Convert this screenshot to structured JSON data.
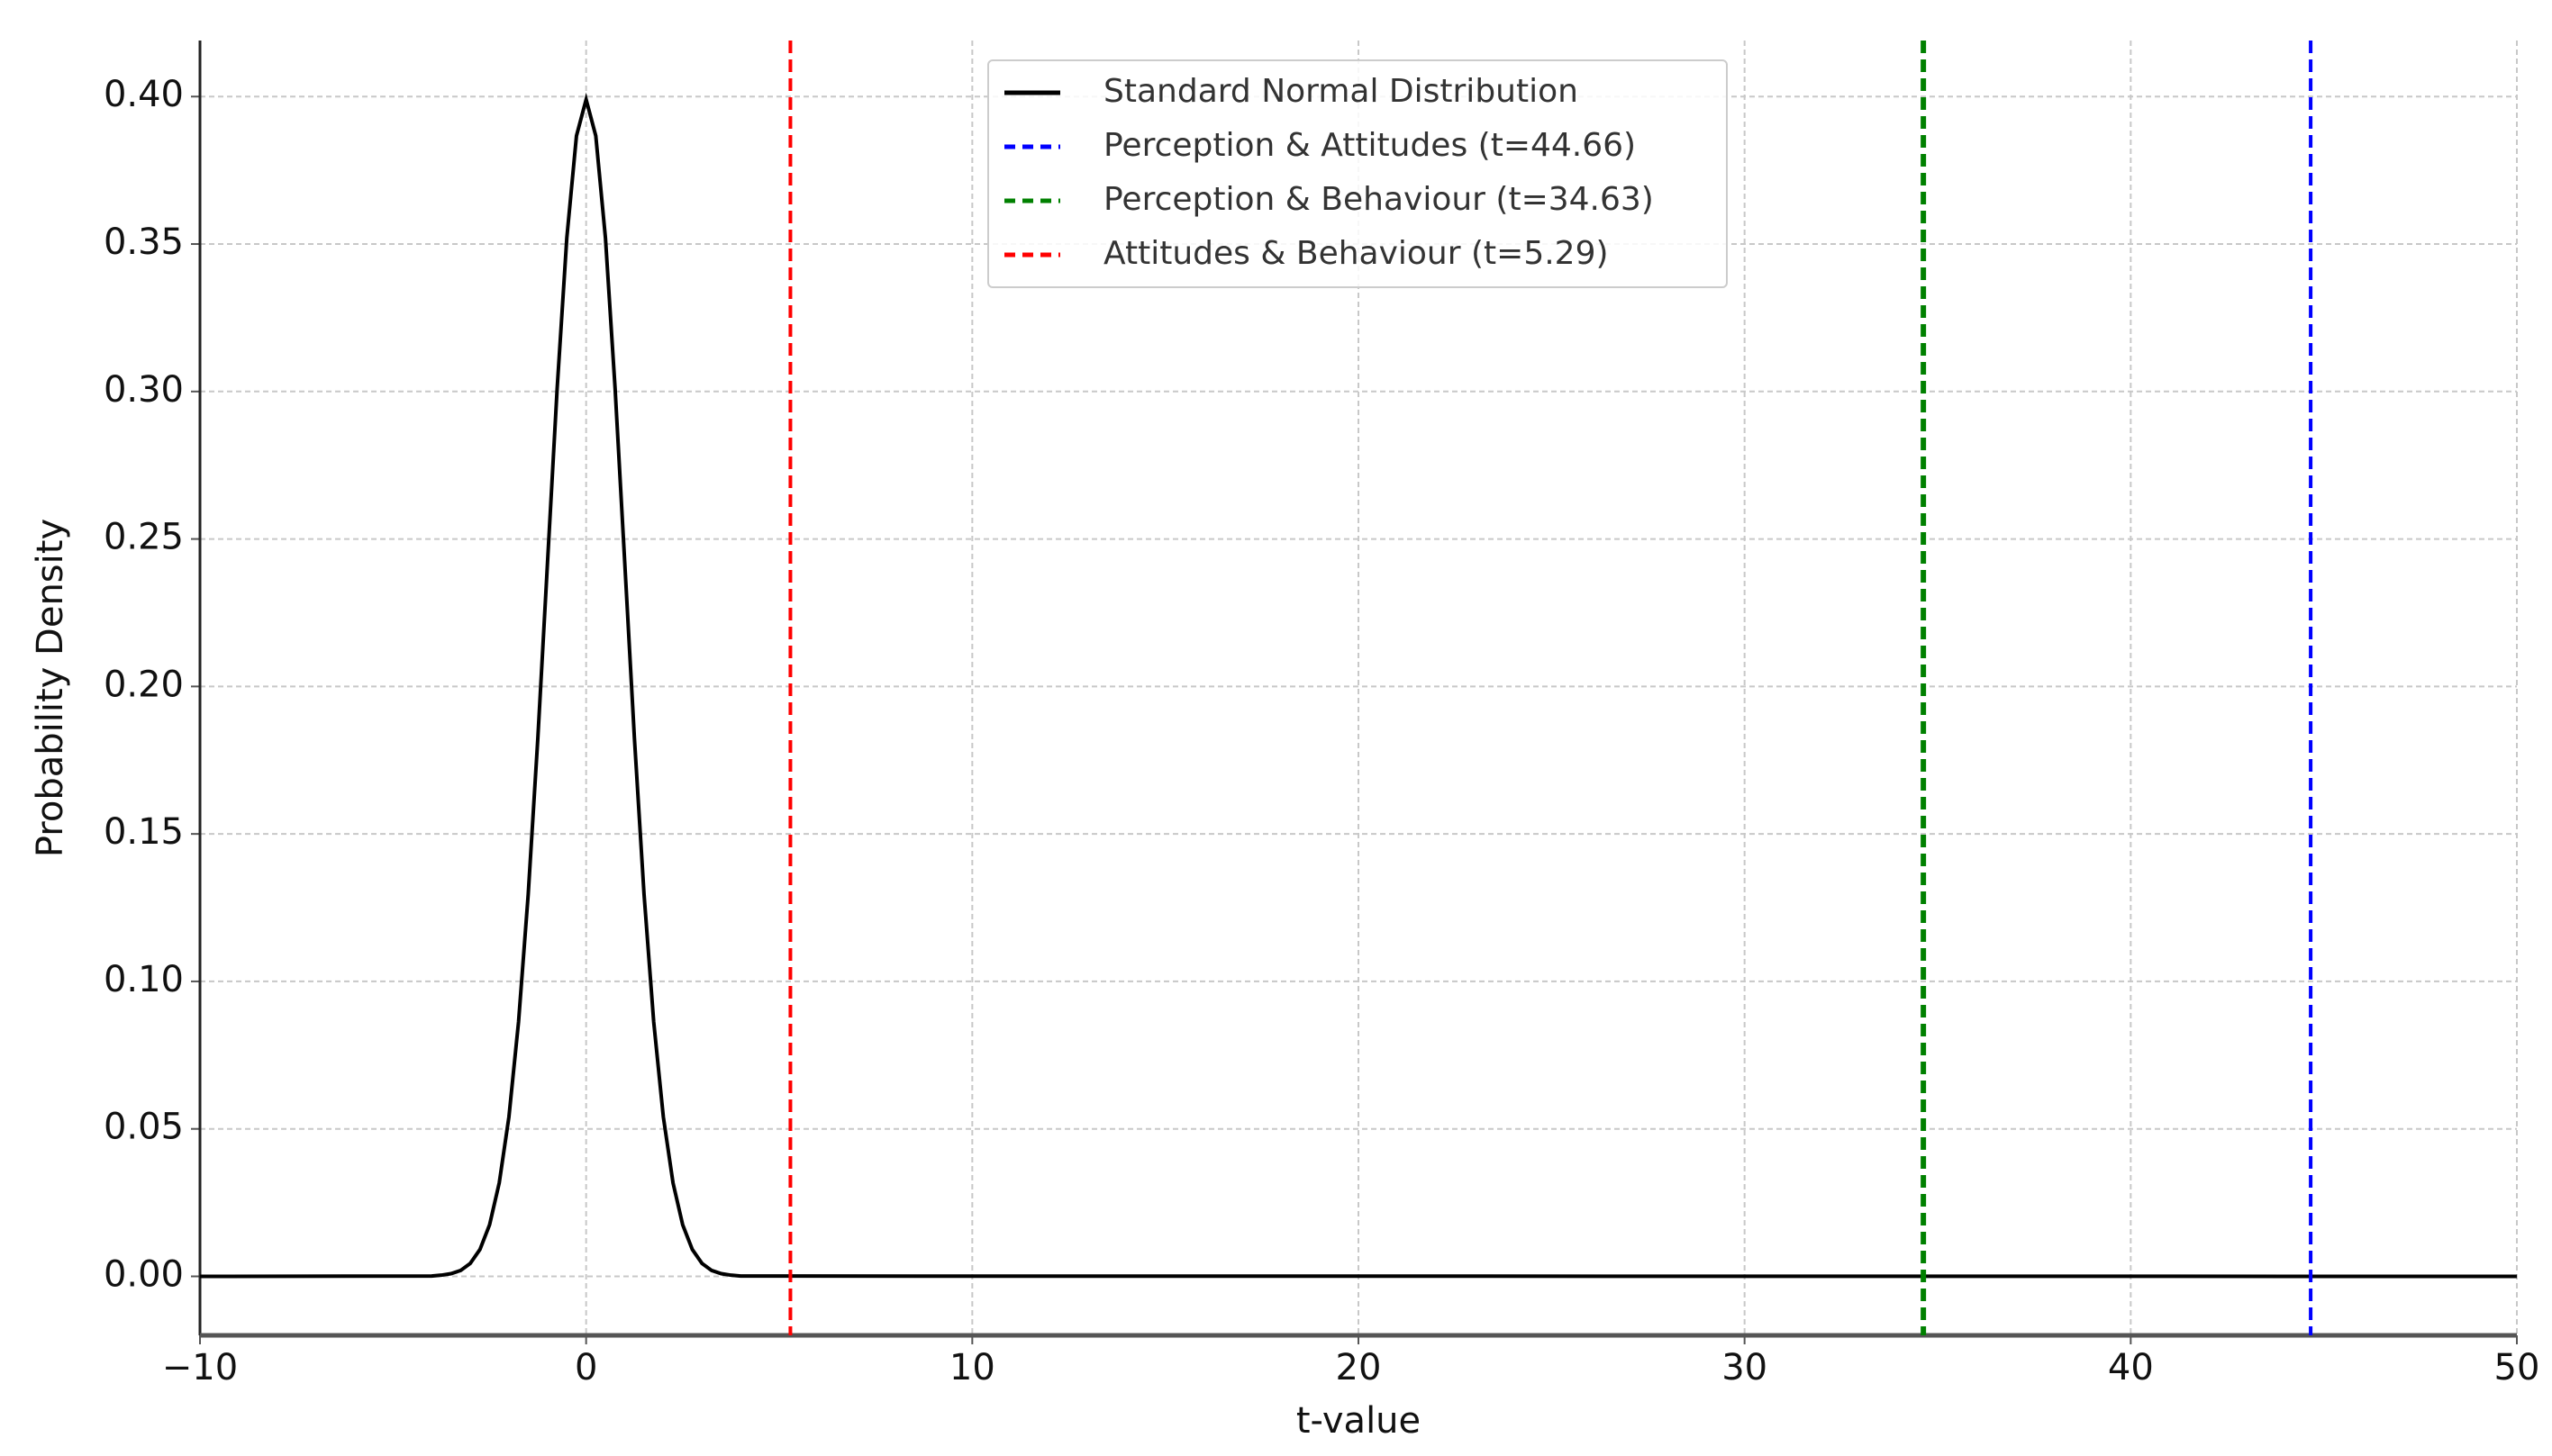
{
  "chart_data": {
    "type": "line",
    "xlabel": "t-value",
    "ylabel": "Probability Density",
    "xlim": [
      -10,
      50
    ],
    "ylim": [
      -0.02,
      0.419
    ],
    "xticks": [
      {
        "value": -10,
        "label": "−10"
      },
      0,
      10,
      20,
      30,
      40,
      50
    ],
    "yticks": [
      {
        "value": 0,
        "label": "0.00"
      },
      {
        "value": 0.05,
        "label": "0.05"
      },
      {
        "value": 0.1,
        "label": "0.10"
      },
      {
        "value": 0.15,
        "label": "0.15"
      },
      {
        "value": 0.2,
        "label": "0.20"
      },
      {
        "value": 0.25,
        "label": "0.25"
      },
      {
        "value": 0.3,
        "label": "0.30"
      },
      {
        "value": 0.35,
        "label": "0.35"
      },
      {
        "value": 0.4,
        "label": "0.40"
      }
    ],
    "grid": true,
    "legend": "upper center",
    "series": [
      {
        "name": "Standard Normal Distribution",
        "color": "#000000",
        "x": [
          -10,
          -4,
          -3.75,
          -3.5,
          -3.25,
          -3,
          -2.75,
          -2.5,
          -2.25,
          -2,
          -1.75,
          -1.5,
          -1.25,
          -1,
          -0.75,
          -0.5,
          -0.25,
          0,
          0.25,
          0.5,
          0.75,
          1,
          1.25,
          1.5,
          1.75,
          2,
          2.25,
          2.5,
          2.75,
          3,
          3.25,
          3.5,
          3.75,
          4,
          50
        ],
        "values": [
          0,
          0.0001,
          0.0004,
          0.0009,
          0.002,
          0.0044,
          0.0091,
          0.0175,
          0.0317,
          0.054,
          0.0863,
          0.1295,
          0.1826,
          0.242,
          0.3011,
          0.3521,
          0.3867,
          0.399,
          0.3867,
          0.3521,
          0.3011,
          0.242,
          0.1826,
          0.1295,
          0.0863,
          0.054,
          0.0317,
          0.0175,
          0.0091,
          0.0044,
          0.002,
          0.0009,
          0.0004,
          0.0001,
          0
        ]
      }
    ],
    "vlines": [
      {
        "name": "Perception & Attitudes (t=44.66)",
        "color": "#0000ff",
        "x": 44.66
      },
      {
        "name": "Perception & Behaviour (t=34.63)",
        "color": "#008000",
        "x": 34.63
      },
      {
        "name": "Attitudes & Behaviour (t=5.29)",
        "color": "#ff0000",
        "x": 5.29
      }
    ]
  }
}
